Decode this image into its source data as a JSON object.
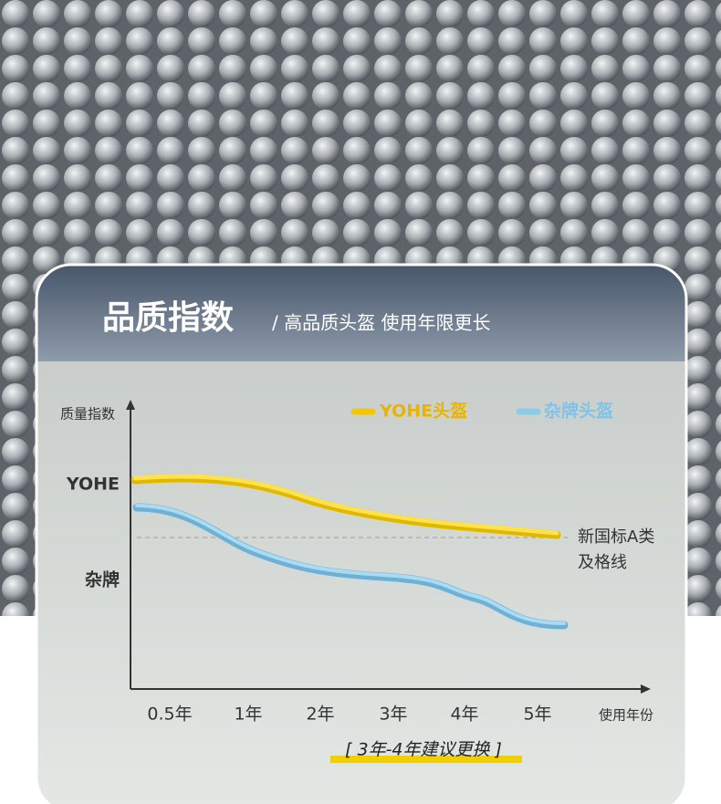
{
  "header": {
    "title": "品质指数",
    "subtitle": "/ 高品质头盔 使用年限更长"
  },
  "chart": {
    "y_axis_label": "质量指数",
    "x_axis_label": "使用年份",
    "y_labels": [
      "YOHE",
      "杂牌"
    ],
    "legend": [
      "YOHE头盔",
      "杂牌头盔"
    ],
    "categories": [
      "0.5年",
      "1年",
      "2年",
      "3年",
      "4年",
      "5年"
    ],
    "reference_label": [
      "新国标A类",
      "及格线"
    ],
    "recommendation": "[ 3年-4年建议更换 ]"
  }
}
